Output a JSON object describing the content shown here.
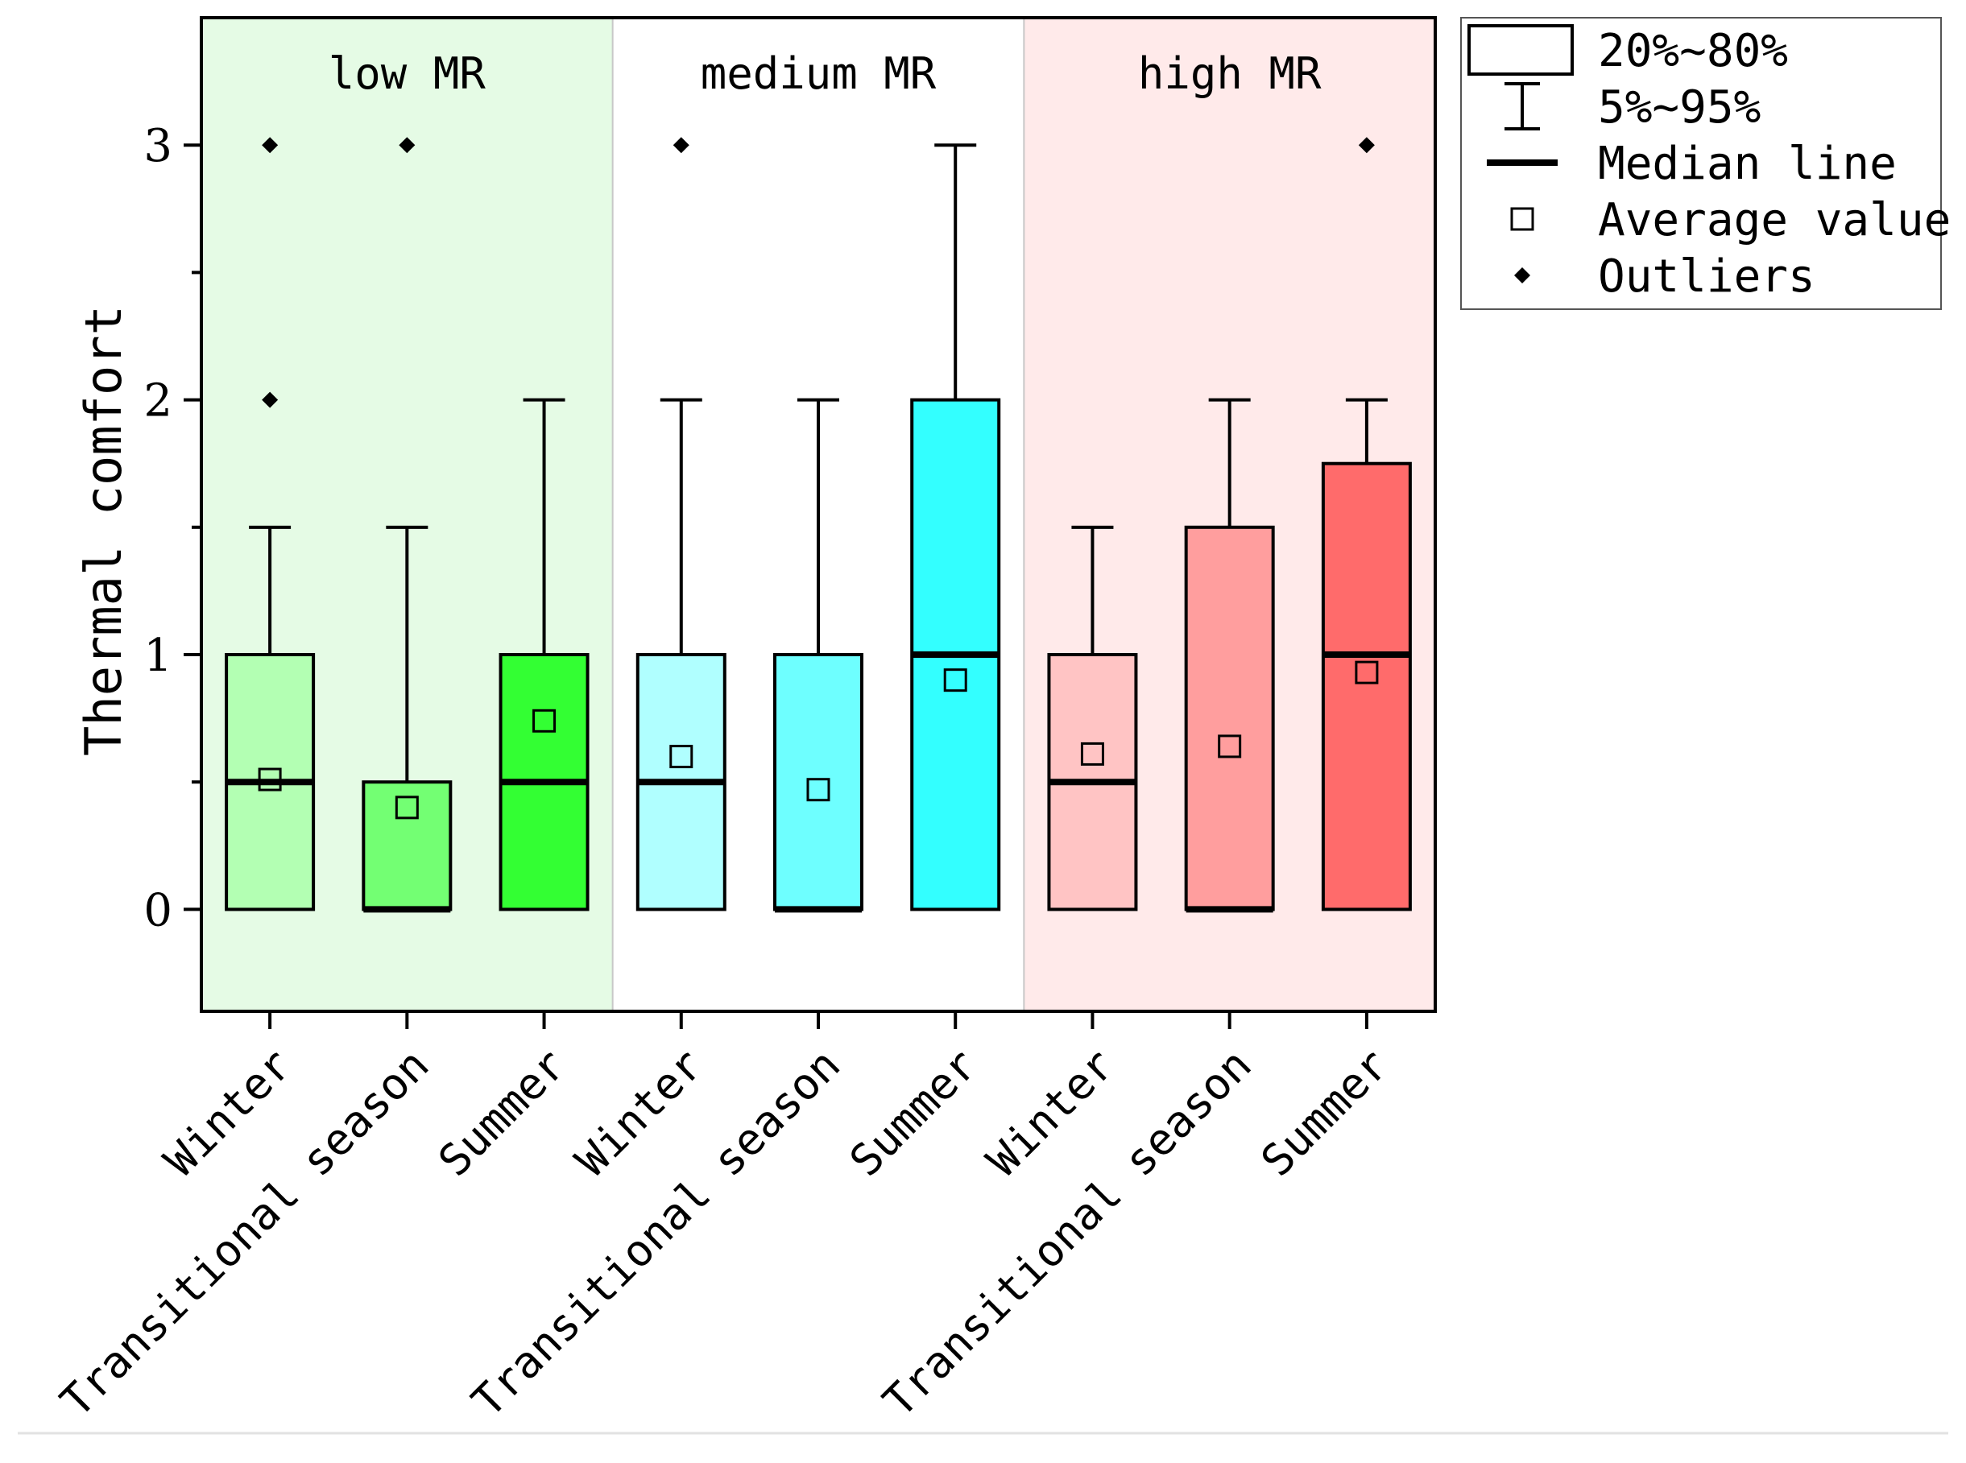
{
  "chart_data": {
    "type": "box",
    "ylabel": "Thermal comfort",
    "xlabel": "",
    "ylim": [
      -0.4,
      3.5
    ],
    "yticks": [
      0,
      1,
      2,
      3
    ],
    "groups": [
      {
        "label": "low MR",
        "background": "#e5fbe5",
        "start": 0,
        "end": 2
      },
      {
        "label": "medium MR",
        "background": "#ffffff",
        "start": 3,
        "end": 5
      },
      {
        "label": "high MR",
        "background": "#ffeaea",
        "start": 6,
        "end": 8
      }
    ],
    "categories": [
      "Winter",
      "Transitional season",
      "Summer",
      "Winter",
      "Transitional season",
      "Summer",
      "Winter",
      "Transitional season",
      "Summer"
    ],
    "boxes": [
      {
        "q20": 0,
        "q80": 1,
        "median": 0.5,
        "whisker_low": 0,
        "whisker_high": 1.5,
        "mean": 0.51,
        "outliers": [
          2,
          3
        ],
        "color": "#b3ffb3"
      },
      {
        "q20": 0,
        "q80": 0.5,
        "median": 0,
        "whisker_low": 0,
        "whisker_high": 1.5,
        "mean": 0.4,
        "outliers": [
          3
        ],
        "color": "#73ff73"
      },
      {
        "q20": 0,
        "q80": 1,
        "median": 0.5,
        "whisker_low": 0,
        "whisker_high": 2,
        "mean": 0.74,
        "outliers": [],
        "color": "#33ff33"
      },
      {
        "q20": 0,
        "q80": 1,
        "median": 0.5,
        "whisker_low": 0,
        "whisker_high": 2,
        "mean": 0.6,
        "outliers": [
          3
        ],
        "color": "#b0ffff"
      },
      {
        "q20": 0,
        "q80": 1,
        "median": 0,
        "whisker_low": 0,
        "whisker_high": 2,
        "mean": 0.47,
        "outliers": [],
        "color": "#6effff"
      },
      {
        "q20": 0,
        "q80": 2,
        "median": 1,
        "whisker_low": 0,
        "whisker_high": 3,
        "mean": 0.9,
        "outliers": [],
        "color": "#33ffff"
      },
      {
        "q20": 0,
        "q80": 1,
        "median": 0.5,
        "whisker_low": 0,
        "whisker_high": 1.5,
        "mean": 0.61,
        "outliers": [],
        "color": "#ffc4c4"
      },
      {
        "q20": 0,
        "q80": 1.5,
        "median": 0,
        "whisker_low": 0,
        "whisker_high": 2,
        "mean": 0.64,
        "outliers": [],
        "color": "#ff9e9e"
      },
      {
        "q20": 0,
        "q80": 1.75,
        "median": 1,
        "whisker_low": 0,
        "whisker_high": 2,
        "mean": 0.93,
        "outliers": [
          3
        ],
        "color": "#ff6b6b"
      }
    ],
    "legend": {
      "position": "top-right-outside",
      "items": [
        {
          "symbol": "box",
          "label": "20%~80%"
        },
        {
          "symbol": "whisker",
          "label": "5%~95%"
        },
        {
          "symbol": "median",
          "label": "Median line"
        },
        {
          "symbol": "mean",
          "label": "Average value"
        },
        {
          "symbol": "outlier",
          "label": "Outliers"
        }
      ]
    },
    "grid": false
  }
}
